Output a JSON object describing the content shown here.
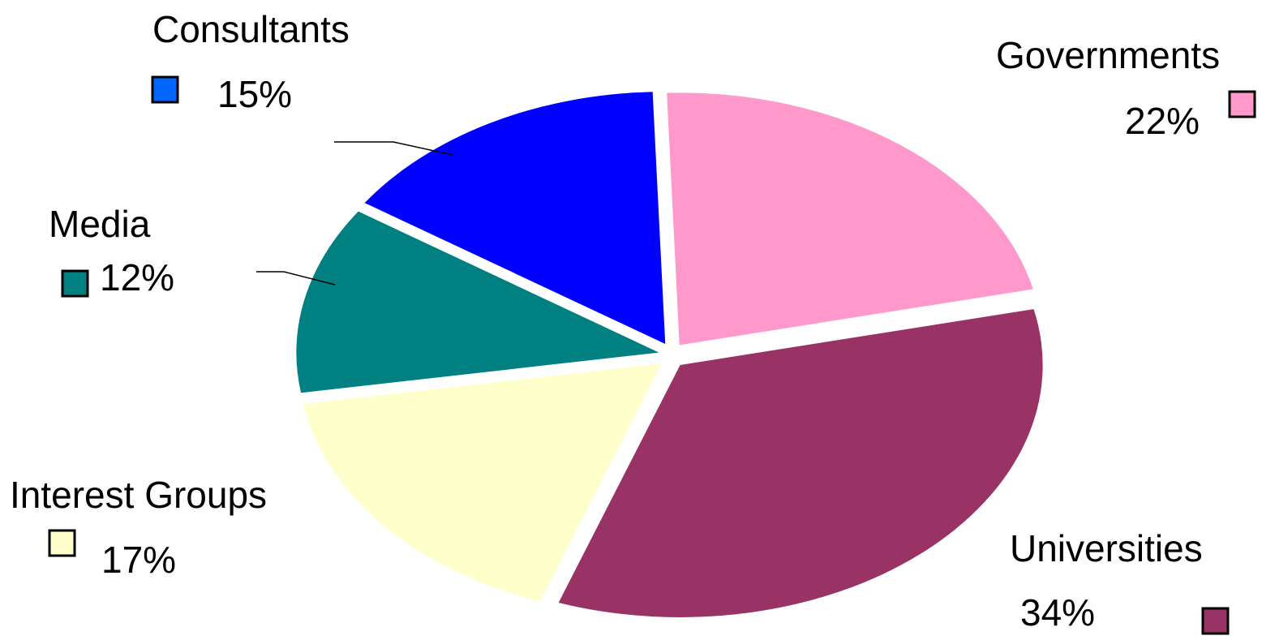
{
  "chart_data": {
    "type": "pie",
    "title": "",
    "exploded": true,
    "slices": [
      {
        "label": "Governments",
        "percent_label": "22%",
        "value": 22,
        "color": "#ff99cc"
      },
      {
        "label": "Universities",
        "percent_label": "34%",
        "value": 34,
        "color": "#993366"
      },
      {
        "label": "Interest Groups",
        "percent_label": "17%",
        "value": 17,
        "color": "#ffffcc"
      },
      {
        "label": "Media",
        "percent_label": "12%",
        "value": 12,
        "color": "#008080"
      },
      {
        "label": "Consultants",
        "percent_label": "15%",
        "value": 15,
        "color": "#0000ff"
      }
    ],
    "legend_swatch_colors": {
      "Consultants": "#0066ff"
    }
  }
}
